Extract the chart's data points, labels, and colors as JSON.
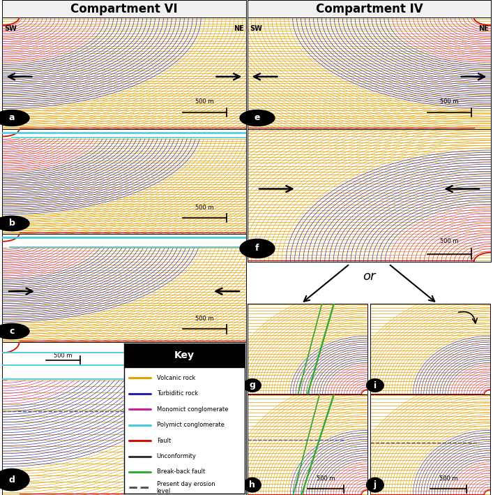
{
  "title_left": "Compartment VI",
  "title_right": "Compartment IV",
  "bg_color": "#ffffff",
  "colors": {
    "volcanic": "#E8A000",
    "turbiditic": "#2222AA",
    "monomict": "#CC2299",
    "polymict": "#44CCDD",
    "fault": "#CC1100",
    "unconformity": "#333333",
    "breakback": "#33AA33",
    "erosion": "#555555"
  },
  "key_items": [
    [
      "Volcanic rock",
      "#E8A000",
      "-"
    ],
    [
      "Turbiditic rock",
      "#2222AA",
      "-"
    ],
    [
      "Monomict conglomerate",
      "#CC2299",
      "-"
    ],
    [
      "Polymict conglomerate",
      "#44CCDD",
      "-"
    ],
    [
      "Fault",
      "#CC1100",
      "-"
    ],
    [
      "Unconformity",
      "#333333",
      "-"
    ],
    [
      "Break-back fault",
      "#33AA33",
      "-"
    ],
    [
      "Present day erosion\nlevel",
      "#555555",
      "--"
    ]
  ]
}
